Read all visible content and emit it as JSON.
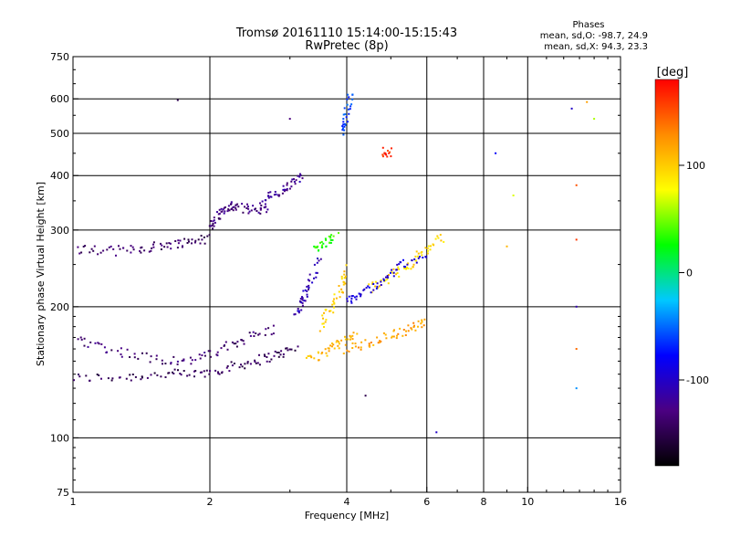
{
  "title_line1": "Tromsø 20161110 15:14:00-15:15:43",
  "title_line2": "RwPretec (8p)",
  "phases_box": {
    "heading": "Phases",
    "line_o": "mean, sd,O: -98.7, 24.9",
    "line_x": "mean, sd,X:  94.3, 23.3"
  },
  "colorbar": {
    "unit_label": "[deg]",
    "ticks": [
      "100",
      "0",
      "-100"
    ],
    "range": [
      -180,
      180
    ],
    "colors": [
      "#000000",
      "#4b0082",
      "#0000ff",
      "#00c8ff",
      "#00ff00",
      "#ffff00",
      "#ff8c00",
      "#ff0000"
    ]
  },
  "chart_data": {
    "type": "scatter",
    "title": "Tromsø 20161110 15:14:00-15:15:43",
    "subtitle": "RwPretec (8p)",
    "xlabel": "Frequency [MHz]",
    "ylabel": "Stationary phase Virtual Height [km]",
    "xscale": "log",
    "yscale": "log",
    "xlim": [
      1,
      16
    ],
    "ylim": [
      75,
      750
    ],
    "xticks": [
      1,
      2,
      4,
      6,
      8,
      10,
      16
    ],
    "xtick_labels": [
      "1",
      "2",
      "4",
      "6",
      "8",
      "10",
      "16"
    ],
    "yticks": [
      75,
      100,
      200,
      300,
      400,
      500,
      600,
      750
    ],
    "ytick_labels": [
      "75",
      "100",
      "200",
      "300",
      "400",
      "500",
      "600",
      "750"
    ],
    "x_gridlines": [
      2,
      4,
      6,
      8,
      10
    ],
    "y_gridlines": [
      100,
      200,
      300,
      400,
      500,
      600
    ],
    "color_scale": "phase [deg], -180 to 180",
    "traces": [
      {
        "x": [
          1.0,
          1.3,
          1.6,
          1.9,
          2.2,
          2.5,
          2.8,
          3.1
        ],
        "y": [
          137,
          138,
          140,
          140,
          145,
          150,
          155,
          160
        ],
        "phase": -145
      },
      {
        "x": [
          1.0,
          1.2,
          1.5,
          1.8,
          2.1,
          2.4,
          2.8
        ],
        "y": [
          170,
          160,
          152,
          150,
          158,
          170,
          178
        ],
        "phase": -135
      },
      {
        "x": [
          1.0,
          1.2,
          1.4,
          1.6,
          1.8,
          2.0
        ],
        "y": [
          272,
          268,
          272,
          277,
          282,
          287
        ],
        "phase": -140
      },
      {
        "x": [
          2.0,
          2.1,
          2.2,
          2.3,
          2.5,
          2.7
        ],
        "y": [
          305,
          325,
          340,
          338,
          333,
          336
        ],
        "phase": -130
      },
      {
        "x": [
          2.6,
          2.8,
          3.0,
          3.2
        ],
        "y": [
          350,
          362,
          380,
          400
        ],
        "phase": -120
      },
      {
        "x": [
          3.1,
          3.2,
          3.3,
          3.5
        ],
        "y": [
          190,
          205,
          225,
          260
        ],
        "phase": -110
      },
      {
        "x": [
          3.5,
          3.7,
          3.9,
          4.0
        ],
        "y": [
          180,
          200,
          220,
          245
        ],
        "phase": 100
      },
      {
        "x": [
          3.3,
          3.6,
          3.9,
          4.2
        ],
        "y": [
          150,
          158,
          165,
          172
        ],
        "phase": 110
      },
      {
        "x": [
          4.0,
          4.5,
          5.0,
          5.5,
          6.0
        ],
        "y": [
          160,
          165,
          172,
          178,
          185
        ],
        "phase": 120
      },
      {
        "x": [
          4.5,
          5.0,
          5.5,
          6.0,
          6.5
        ],
        "y": [
          220,
          235,
          250,
          270,
          290
        ],
        "phase": 95
      },
      {
        "x": [
          4.0,
          4.3,
          4.8,
          5.3,
          6.0
        ],
        "y": [
          205,
          215,
          230,
          250,
          260
        ],
        "phase": -95
      },
      {
        "x": [
          3.9,
          4.0,
          4.1
        ],
        "y": [
          500,
          560,
          610
        ],
        "phase": -60
      },
      {
        "x": [
          4.8,
          5.0
        ],
        "y": [
          452,
          452
        ],
        "phase": 165
      },
      {
        "x": [
          3.4,
          3.6,
          3.8
        ],
        "y": [
          270,
          280,
          290
        ],
        "phase": 30
      }
    ],
    "points": [
      {
        "x": 1.7,
        "y": 596,
        "phase": -150
      },
      {
        "x": 3.0,
        "y": 540,
        "phase": -130
      },
      {
        "x": 12.5,
        "y": 570,
        "phase": -100
      },
      {
        "x": 12.8,
        "y": 380,
        "phase": 150
      },
      {
        "x": 12.8,
        "y": 285,
        "phase": 160
      },
      {
        "x": 12.8,
        "y": 200,
        "phase": -110
      },
      {
        "x": 12.8,
        "y": 160,
        "phase": 140
      },
      {
        "x": 12.8,
        "y": 130,
        "phase": -40
      },
      {
        "x": 14.0,
        "y": 540,
        "phase": 60
      },
      {
        "x": 13.5,
        "y": 590,
        "phase": 120
      },
      {
        "x": 6.3,
        "y": 103,
        "phase": -100
      },
      {
        "x": 4.4,
        "y": 125,
        "phase": -150
      },
      {
        "x": 9.3,
        "y": 360,
        "phase": 70
      },
      {
        "x": 9.0,
        "y": 275,
        "phase": 110
      },
      {
        "x": 8.5,
        "y": 450,
        "phase": -80
      }
    ]
  }
}
